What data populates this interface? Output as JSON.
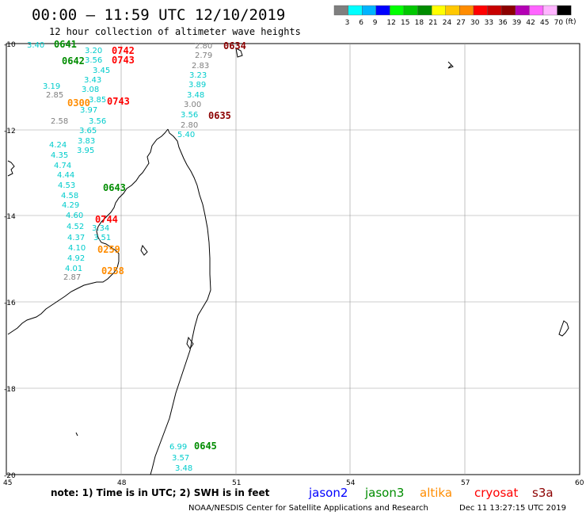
{
  "title": "00:00 – 11:59 UTC 12/10/2019",
  "subtitle": "12 hour collection of altimeter wave heights",
  "colorbar": {
    "unit": "(ft)",
    "labels": [
      "3",
      "6",
      "9",
      "12",
      "15",
      "18",
      "21",
      "24",
      "27",
      "30",
      "33",
      "36",
      "39",
      "42",
      "45",
      "70"
    ],
    "colors": [
      "#7f7f7f",
      "#00ffff",
      "#00b4ff",
      "#0000ff",
      "#00ff00",
      "#00c800",
      "#008c00",
      "#ffff00",
      "#ffc800",
      "#ff8c00",
      "#ff0000",
      "#c80000",
      "#8c0000",
      "#b400b4",
      "#ff64ff",
      "#ffb4ff",
      "#000000"
    ]
  },
  "axes": {
    "y_labels": [
      "-10",
      "-12",
      "-14",
      "-16",
      "-18",
      "-20"
    ],
    "x_labels": [
      "45",
      "48",
      "51",
      "54",
      "57",
      "60"
    ]
  },
  "satellite_colors": {
    "jason2": "#0000ff",
    "jason3": "#008c00",
    "altika": "#ff8c00",
    "cryosat": "#ff0000",
    "s3a": "#8c0000"
  },
  "pass_labels": [
    {
      "text": "0641",
      "sat": "jason3"
    },
    {
      "text": "0642",
      "sat": "jason3"
    },
    {
      "text": "0643",
      "sat": "jason3"
    },
    {
      "text": "0645",
      "sat": "jason3"
    },
    {
      "text": "0742",
      "sat": "cryosat"
    },
    {
      "text": "0743",
      "sat": "cryosat"
    },
    {
      "text": "0743",
      "sat": "cryosat"
    },
    {
      "text": "0744",
      "sat": "cryosat"
    },
    {
      "text": "0634",
      "sat": "s3a"
    },
    {
      "text": "0635",
      "sat": "s3a"
    },
    {
      "text": "0300",
      "sat": "altika"
    },
    {
      "text": "0259",
      "sat": "altika"
    },
    {
      "text": "0258",
      "sat": "altika"
    }
  ],
  "observations": [
    {
      "v": "3.40",
      "c": "#00cccc"
    },
    {
      "v": "3.20",
      "c": "#00cccc"
    },
    {
      "v": "3.56",
      "c": "#00cccc"
    },
    {
      "v": "3.45",
      "c": "#00cccc"
    },
    {
      "v": "3.43",
      "c": "#00cccc"
    },
    {
      "v": "3.08",
      "c": "#00cccc"
    },
    {
      "v": "3.85",
      "c": "#00cccc"
    },
    {
      "v": "3.97",
      "c": "#00cccc"
    },
    {
      "v": "3.56",
      "c": "#00cccc"
    },
    {
      "v": "3.65",
      "c": "#00cccc"
    },
    {
      "v": "3.83",
      "c": "#00cccc"
    },
    {
      "v": "3.95",
      "c": "#00cccc"
    },
    {
      "v": "3.19",
      "c": "#00cccc"
    },
    {
      "v": "2.85",
      "c": "#7f7f7f"
    },
    {
      "v": "2.58",
      "c": "#7f7f7f"
    },
    {
      "v": "4.24",
      "c": "#00cccc"
    },
    {
      "v": "4.35",
      "c": "#00cccc"
    },
    {
      "v": "4.74",
      "c": "#00cccc"
    },
    {
      "v": "4.44",
      "c": "#00cccc"
    },
    {
      "v": "4.53",
      "c": "#00cccc"
    },
    {
      "v": "4.58",
      "c": "#00cccc"
    },
    {
      "v": "4.29",
      "c": "#00cccc"
    },
    {
      "v": "4.60",
      "c": "#00cccc"
    },
    {
      "v": "4.52",
      "c": "#00cccc"
    },
    {
      "v": "4.37",
      "c": "#00cccc"
    },
    {
      "v": "4.10",
      "c": "#00cccc"
    },
    {
      "v": "4.92",
      "c": "#00cccc"
    },
    {
      "v": "4.01",
      "c": "#00cccc"
    },
    {
      "v": "2.87",
      "c": "#7f7f7f"
    },
    {
      "v": "3.34",
      "c": "#00cccc"
    },
    {
      "v": "3.51",
      "c": "#00cccc"
    },
    {
      "v": "2.80",
      "c": "#7f7f7f"
    },
    {
      "v": "2.79",
      "c": "#7f7f7f"
    },
    {
      "v": "2.83",
      "c": "#7f7f7f"
    },
    {
      "v": "3.23",
      "c": "#00cccc"
    },
    {
      "v": "3.89",
      "c": "#00cccc"
    },
    {
      "v": "3.48",
      "c": "#00cccc"
    },
    {
      "v": "3.00",
      "c": "#7f7f7f"
    },
    {
      "v": "3.56",
      "c": "#00cccc"
    },
    {
      "v": "2.80",
      "c": "#7f7f7f"
    },
    {
      "v": "5.40",
      "c": "#00cccc"
    },
    {
      "v": "6.99",
      "c": "#00cccc"
    },
    {
      "v": "3.57",
      "c": "#00cccc"
    },
    {
      "v": "3.48",
      "c": "#00cccc"
    }
  ],
  "note": "note: 1) Time is in UTC; 2) SWH is in feet",
  "legend": [
    {
      "label": "jason2",
      "color": "#0000ff"
    },
    {
      "label": "jason3",
      "color": "#008c00"
    },
    {
      "label": "altika",
      "color": "#ff8c00"
    },
    {
      "label": "cryosat",
      "color": "#ff0000"
    },
    {
      "label": "s3a",
      "color": "#8c0000"
    }
  ],
  "credit": "NOAA/NESDIS Center for Satellite Applications and Research",
  "timestamp": "Dec 11 13:27:15 UTC 2019"
}
